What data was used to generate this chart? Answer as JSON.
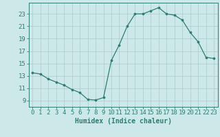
{
  "x": [
    0,
    1,
    2,
    3,
    4,
    5,
    6,
    7,
    8,
    9,
    10,
    11,
    12,
    13,
    14,
    15,
    16,
    17,
    18,
    19,
    20,
    21,
    22,
    23
  ],
  "y": [
    13.5,
    13.3,
    12.5,
    12.0,
    11.5,
    10.8,
    10.3,
    9.2,
    9.1,
    9.5,
    15.5,
    18.0,
    21.0,
    23.0,
    23.0,
    23.5,
    24.0,
    23.0,
    22.8,
    22.0,
    20.0,
    18.5,
    16.0,
    15.8
  ],
  "line_color": "#2e7d6e",
  "marker": "o",
  "marker_size": 2.2,
  "bg_color": "#cce8e8",
  "grid_color": "#aacccc",
  "xlabel": "Humidex (Indice chaleur)",
  "xlim": [
    -0.5,
    23.5
  ],
  "ylim": [
    8.0,
    24.8
  ],
  "yticks": [
    9,
    11,
    13,
    15,
    17,
    19,
    21,
    23
  ],
  "xticks": [
    0,
    1,
    2,
    3,
    4,
    5,
    6,
    7,
    8,
    9,
    10,
    11,
    12,
    13,
    14,
    15,
    16,
    17,
    18,
    19,
    20,
    21,
    22,
    23
  ],
  "tick_color": "#2e7d6e",
  "axis_color": "#2e7d6e",
  "label_fontsize": 7,
  "tick_fontsize": 6.5
}
